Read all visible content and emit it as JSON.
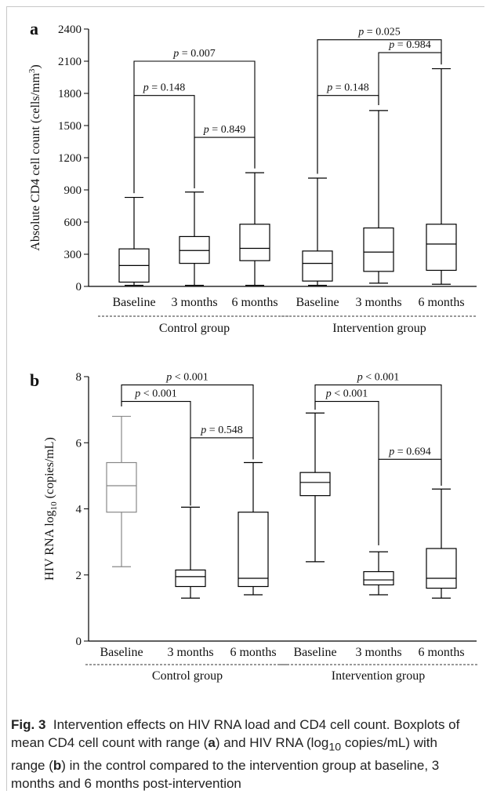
{
  "chart_data": [
    {
      "type": "box",
      "panel_label": "a",
      "ylabel_main": "Absolute CD4 cell count (cells/mm",
      "ylabel_sup": "3",
      "ylabel_end": ")",
      "ylim": [
        0,
        2400
      ],
      "yticks": [
        0,
        300,
        600,
        900,
        1200,
        1500,
        1800,
        2100,
        2400
      ],
      "categories": [
        "Baseline",
        "3 months",
        "6 months",
        "Baseline",
        "3 months",
        "6 months"
      ],
      "groups": [
        {
          "label": "Control group",
          "from": 0,
          "to": 2
        },
        {
          "label": "Intervention group",
          "from": 3,
          "to": 5
        }
      ],
      "boxes": [
        {
          "min": 10,
          "q1": 40,
          "median": 195,
          "q3": 350,
          "max": 830
        },
        {
          "min": 10,
          "q1": 215,
          "median": 335,
          "q3": 465,
          "max": 880
        },
        {
          "min": 10,
          "q1": 240,
          "median": 355,
          "q3": 580,
          "max": 1060
        },
        {
          "min": 10,
          "q1": 50,
          "median": 215,
          "q3": 330,
          "max": 1010
        },
        {
          "min": 30,
          "q1": 140,
          "median": 320,
          "q3": 545,
          "max": 1640
        },
        {
          "min": 20,
          "q1": 150,
          "median": 395,
          "q3": 580,
          "max": 2030
        }
      ],
      "comparisons": [
        {
          "a": 0,
          "b": 2,
          "ya": 870,
          "yb": 1100,
          "bar": 2100,
          "label": "p = 0.007"
        },
        {
          "a": 0,
          "b": 1,
          "ya": 870,
          "yb": 915,
          "bar": 1780,
          "label": "p = 0.148"
        },
        {
          "a": 1,
          "b": 2,
          "ya": 915,
          "yb": 1100,
          "bar": 1390,
          "label": "p = 0.849"
        },
        {
          "a": 3,
          "b": 5,
          "ya": 1050,
          "yb": 2070,
          "bar": 2300,
          "label": "p = 0.025"
        },
        {
          "a": 3,
          "b": 4,
          "ya": 1050,
          "yb": 1690,
          "bar": 1780,
          "label": "p = 0.148"
        },
        {
          "a": 4,
          "b": 5,
          "ya": 1690,
          "yb": 2070,
          "bar": 2180,
          "label": "p = 0.984"
        }
      ]
    },
    {
      "type": "box",
      "panel_label": "b",
      "ylabel_main": "HIV RNA log",
      "ylabel_sub": "10",
      "ylabel_end": " (copies/mL)",
      "ylim": [
        0,
        8
      ],
      "yticks": [
        0,
        2,
        4,
        6,
        8
      ],
      "categories": [
        "Baseline",
        "3 months",
        "6 months",
        "Baseline",
        "3 months",
        "6 months"
      ],
      "groups": [
        {
          "label": "Control group",
          "from": 0,
          "to": 2
        },
        {
          "label": "Intervention group",
          "from": 3,
          "to": 5
        }
      ],
      "boxes": [
        {
          "min": 2.25,
          "q1": 3.9,
          "median": 4.7,
          "q3": 5.4,
          "max": 6.8,
          "color": "#888888"
        },
        {
          "min": 1.3,
          "q1": 1.65,
          "median": 1.95,
          "q3": 2.15,
          "max": 4.05
        },
        {
          "min": 1.4,
          "q1": 1.65,
          "median": 1.9,
          "q3": 3.9,
          "max": 5.4
        },
        {
          "min": 2.4,
          "q1": 4.4,
          "median": 4.8,
          "q3": 5.1,
          "max": 6.9
        },
        {
          "min": 1.4,
          "q1": 1.7,
          "median": 1.85,
          "q3": 2.1,
          "max": 2.7
        },
        {
          "min": 1.3,
          "q1": 1.6,
          "median": 1.9,
          "q3": 2.8,
          "max": 4.6
        }
      ],
      "comparisons": [
        {
          "a": 0,
          "b": 2,
          "ya": 7.1,
          "yb": 5.5,
          "bar": 7.75,
          "label": "p < 0.001"
        },
        {
          "a": 0,
          "b": 1,
          "ya": 7.1,
          "yb": 4.1,
          "bar": 7.25,
          "label": "p < 0.001"
        },
        {
          "a": 1,
          "b": 2,
          "ya": 4.1,
          "yb": 5.5,
          "bar": 6.15,
          "label": "p = 0.548"
        },
        {
          "a": 3,
          "b": 5,
          "ya": 7.0,
          "yb": 4.7,
          "bar": 7.75,
          "label": "p < 0.001"
        },
        {
          "a": 3,
          "b": 4,
          "ya": 7.0,
          "yb": 2.9,
          "bar": 7.25,
          "label": "p < 0.001"
        },
        {
          "a": 4,
          "b": 5,
          "ya": 2.9,
          "yb": 4.7,
          "bar": 5.5,
          "label": "p = 0.694"
        }
      ]
    }
  ],
  "caption": {
    "fig_label": "Fig. 3",
    "title": "Intervention effects on HIV RNA load and CD4 cell count.",
    "text_1": "Boxplots of mean CD4 cell count with range (",
    "label_a": "a",
    "text_2": ") and HIV RNA (log",
    "sub_10": "10",
    "text_3": " copies/mL) with range (",
    "label_b": "b",
    "text_4": ") in the control compared to the intervention group at baseline, 3 months and 6 months post-intervention"
  }
}
